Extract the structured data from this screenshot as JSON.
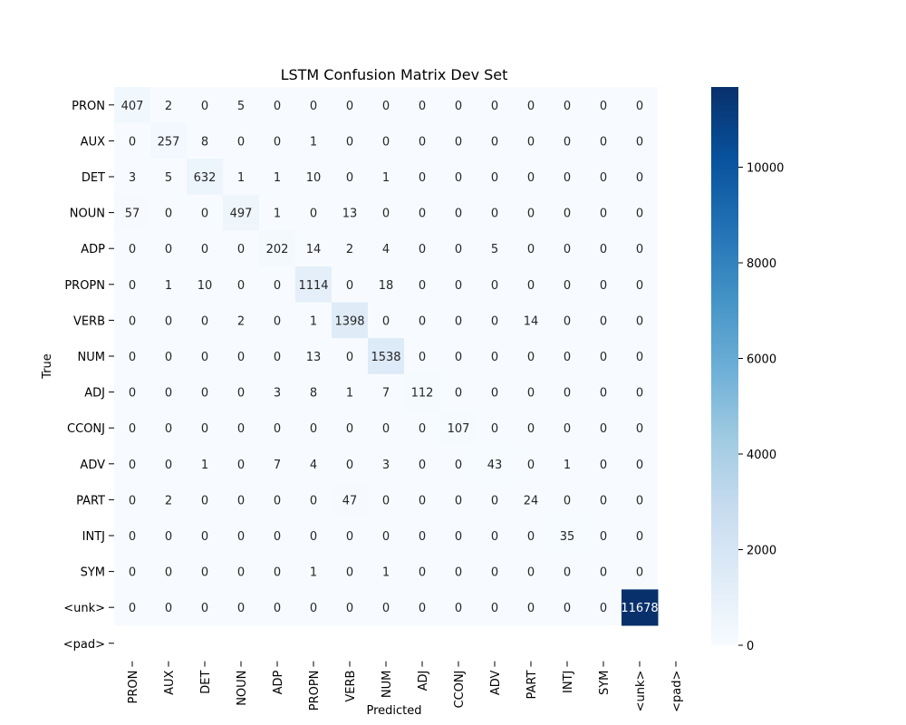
{
  "chart_data": {
    "type": "heatmap",
    "title": "LSTM Confusion Matrix Dev Set",
    "xlabel": "Predicted",
    "ylabel": "True",
    "row_labels": [
      "PRON",
      "AUX",
      "DET",
      "NOUN",
      "ADP",
      "PROPN",
      "VERB",
      "NUM",
      "ADJ",
      "CCONJ",
      "ADV",
      "PART",
      "INTJ",
      "SYM",
      "<unk>",
      "<pad>"
    ],
    "col_labels": [
      "PRON",
      "AUX",
      "DET",
      "NOUN",
      "ADP",
      "PROPN",
      "VERB",
      "NUM",
      "ADJ",
      "CCONJ",
      "ADV",
      "PART",
      "INTJ",
      "SYM",
      "<unk>",
      "<pad>"
    ],
    "values": [
      [
        407,
        2,
        0,
        5,
        0,
        0,
        0,
        0,
        0,
        0,
        0,
        0,
        0,
        0,
        0,
        null
      ],
      [
        0,
        257,
        8,
        0,
        0,
        1,
        0,
        0,
        0,
        0,
        0,
        0,
        0,
        0,
        0,
        null
      ],
      [
        3,
        5,
        632,
        1,
        1,
        10,
        0,
        1,
        0,
        0,
        0,
        0,
        0,
        0,
        0,
        null
      ],
      [
        57,
        0,
        0,
        497,
        1,
        0,
        13,
        0,
        0,
        0,
        0,
        0,
        0,
        0,
        0,
        null
      ],
      [
        0,
        0,
        0,
        0,
        202,
        14,
        2,
        4,
        0,
        0,
        5,
        0,
        0,
        0,
        0,
        null
      ],
      [
        0,
        1,
        10,
        0,
        0,
        1114,
        0,
        18,
        0,
        0,
        0,
        0,
        0,
        0,
        0,
        null
      ],
      [
        0,
        0,
        0,
        2,
        0,
        1,
        1398,
        0,
        0,
        0,
        0,
        14,
        0,
        0,
        0,
        null
      ],
      [
        0,
        0,
        0,
        0,
        0,
        13,
        0,
        1538,
        0,
        0,
        0,
        0,
        0,
        0,
        0,
        null
      ],
      [
        0,
        0,
        0,
        0,
        3,
        8,
        1,
        7,
        112,
        0,
        0,
        0,
        0,
        0,
        0,
        null
      ],
      [
        0,
        0,
        0,
        0,
        0,
        0,
        0,
        0,
        0,
        107,
        0,
        0,
        0,
        0,
        0,
        null
      ],
      [
        0,
        0,
        1,
        0,
        7,
        4,
        0,
        3,
        0,
        0,
        43,
        0,
        1,
        0,
        0,
        null
      ],
      [
        0,
        2,
        0,
        0,
        0,
        0,
        47,
        0,
        0,
        0,
        0,
        24,
        0,
        0,
        0,
        null
      ],
      [
        0,
        0,
        0,
        0,
        0,
        0,
        0,
        0,
        0,
        0,
        0,
        0,
        35,
        0,
        0,
        null
      ],
      [
        0,
        0,
        0,
        0,
        0,
        1,
        0,
        1,
        0,
        0,
        0,
        0,
        0,
        0,
        0,
        null
      ],
      [
        0,
        0,
        0,
        0,
        0,
        0,
        0,
        0,
        0,
        0,
        0,
        0,
        0,
        0,
        11678,
        null
      ],
      [
        null,
        null,
        null,
        null,
        null,
        null,
        null,
        null,
        null,
        null,
        null,
        null,
        null,
        null,
        null,
        null
      ]
    ],
    "colorbar": {
      "min": 0,
      "max": 11678,
      "ticks": [
        0,
        2000,
        4000,
        6000,
        8000,
        10000
      ],
      "colormap": "Blues",
      "low_color": "#f7fbff",
      "high_color": "#08306b"
    }
  }
}
